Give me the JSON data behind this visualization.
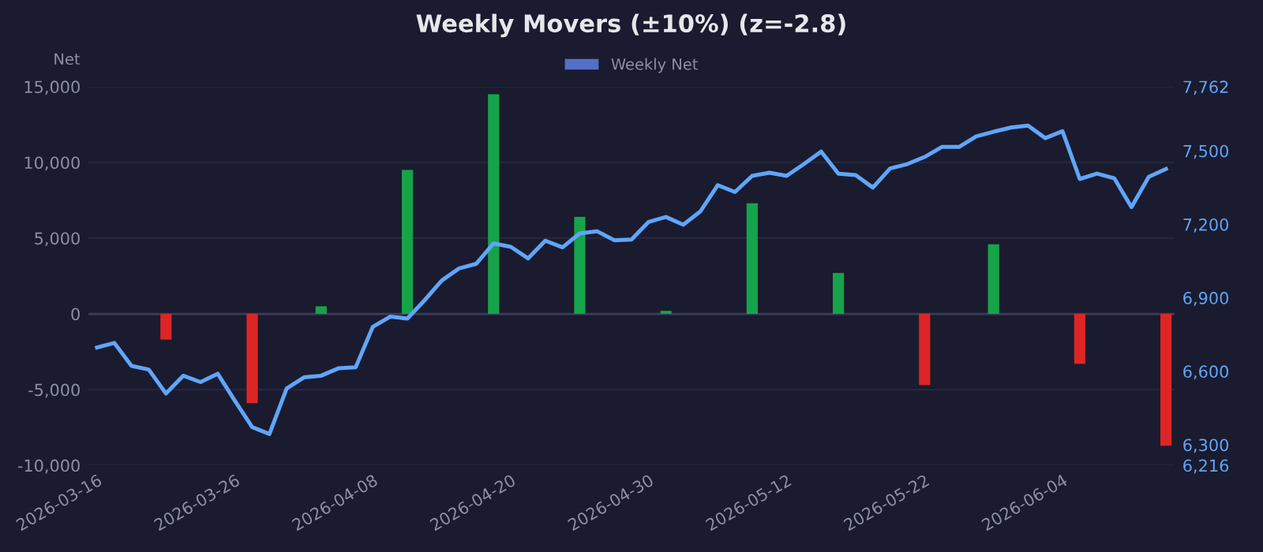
{
  "chart_data": {
    "type": "bar",
    "title": "Weekly Movers (±10%) (z=-2.8)",
    "ylabel": "Net",
    "categories": [
      "2026-03-16",
      null,
      null,
      null,
      null,
      null,
      null,
      null,
      "2026-03-26",
      null,
      null,
      null,
      null,
      null,
      null,
      null,
      "2026-04-08",
      null,
      null,
      null,
      null,
      null,
      null,
      null,
      "2026-04-20",
      null,
      null,
      null,
      null,
      null,
      null,
      null,
      "2026-04-30",
      null,
      null,
      null,
      null,
      null,
      null,
      null,
      "2026-05-12",
      null,
      null,
      null,
      null,
      null,
      null,
      null,
      "2026-05-22",
      null,
      null,
      null,
      null,
      null,
      null,
      null,
      "2026-06-04",
      null,
      null,
      null,
      null,
      null,
      null
    ],
    "series": [
      {
        "name": "Weekly Net",
        "color": "#5470c6",
        "values": [
          null,
          null,
          null,
          null,
          -1700,
          null,
          null,
          null,
          null,
          -5900,
          null,
          null,
          null,
          500,
          null,
          null,
          null,
          null,
          9500,
          null,
          null,
          null,
          null,
          14500,
          null,
          null,
          null,
          null,
          6400,
          null,
          null,
          null,
          null,
          200,
          null,
          null,
          null,
          null,
          7300,
          null,
          null,
          null,
          null,
          2700,
          null,
          null,
          null,
          null,
          -4700,
          null,
          null,
          null,
          4600,
          null,
          null,
          null,
          null,
          -3300,
          null,
          null,
          null,
          null,
          -8700
        ],
        "colors": [
          "#16a34a",
          "#16a34a",
          "#16a34a",
          "#16a34a",
          "#dc2626",
          "#16a34a",
          "#16a34a",
          "#16a34a",
          "#16a34a",
          "#dc2626",
          "#16a34a",
          "#16a34a",
          "#16a34a",
          "#16a34a",
          "#16a34a",
          "#16a34a",
          "#16a34a",
          "#16a34a",
          "#16a34a",
          "#16a34a",
          "#16a34a",
          "#16a34a",
          "#16a34a",
          "#16a34a",
          "#16a34a",
          "#16a34a",
          "#16a34a",
          "#16a34a",
          "#16a34a",
          "#16a34a",
          "#16a34a",
          "#16a34a",
          "#16a34a",
          "#16a34a",
          "#16a34a",
          "#16a34a",
          "#16a34a",
          "#16a34a",
          "#16a34a",
          "#16a34a",
          "#16a34a",
          "#16a34a",
          "#16a34a",
          "#16a34a",
          "#16a34a",
          "#16a34a",
          "#16a34a",
          "#16a34a",
          "#dc2626",
          "#16a34a",
          "#16a34a",
          "#16a34a",
          "#16a34a",
          "#16a34a",
          "#16a34a",
          "#16a34a",
          "#16a34a",
          "#dc2626",
          "#16a34a",
          "#16a34a",
          "#16a34a",
          "#16a34a",
          "#dc2626"
        ]
      },
      {
        "type": "line",
        "axis": "y2",
        "color": "#60a5fa",
        "values": [
          6697,
          6716,
          6622,
          6607,
          6509,
          6582,
          6556,
          6590,
          6479,
          6372,
          6344,
          6530,
          6575,
          6582,
          6612,
          6616,
          6782,
          6823,
          6815,
          6890,
          6971,
          7020,
          7039,
          7122,
          7108,
          7061,
          7133,
          7106,
          7163,
          7172,
          7135,
          7138,
          7210,
          7230,
          7198,
          7253,
          7360,
          7332,
          7398,
          7411,
          7398,
          7446,
          7497,
          7407,
          7401,
          7350,
          7428,
          7446,
          7475,
          7516,
          7516,
          7559,
          7578,
          7595,
          7603,
          7552,
          7580,
          7385,
          7407,
          7388,
          7270,
          7394,
          7426
        ]
      }
    ],
    "ylim": [
      -10000,
      15000
    ],
    "yticks": [
      {
        "value": -10000,
        "label": "-10,000"
      },
      {
        "value": -5000,
        "label": "-5,000"
      },
      0,
      {
        "value": 5000,
        "label": "5,000"
      },
      {
        "value": 10000,
        "label": "10,000"
      },
      {
        "value": 15000,
        "label": "15,000"
      }
    ],
    "y2lim": [
      6216,
      7762
    ],
    "y2ticks": [
      {
        "value": 6216,
        "label": "6,216"
      },
      {
        "value": 6300,
        "label": "6,300"
      },
      {
        "value": 6600,
        "label": "6,600"
      },
      {
        "value": 6900,
        "label": "6,900"
      },
      {
        "value": 7200,
        "label": "7,200"
      },
      {
        "value": 7500,
        "label": "7,500"
      },
      {
        "value": 7762,
        "label": "7,762"
      }
    ],
    "grid": "y",
    "legend": "top",
    "marker": "none",
    "line_style": "solid"
  }
}
